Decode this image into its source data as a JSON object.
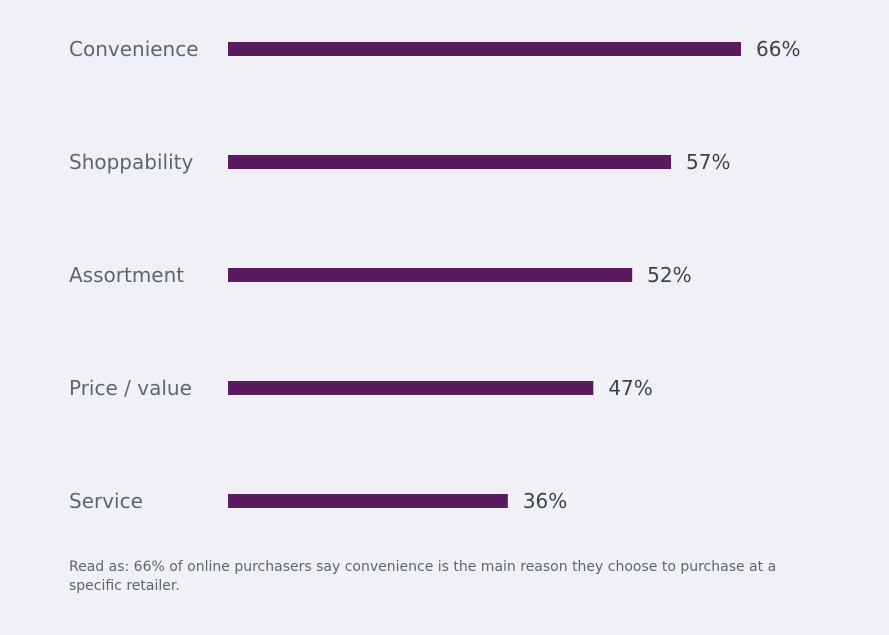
{
  "chart_data": {
    "type": "bar",
    "orientation": "horizontal",
    "categories": [
      "Convenience",
      "Shoppability",
      "Assortment",
      "Price / value",
      "Service"
    ],
    "values": [
      66,
      57,
      52,
      47,
      36
    ],
    "value_labels": [
      "66%",
      "57%",
      "52%",
      "47%",
      "36%"
    ],
    "unit": "%",
    "title": "",
    "xlabel": "",
    "ylabel": "",
    "grid": false,
    "bar_color": "#5a1a5e"
  },
  "footnote": "Read as: 66% of online purchasers say convenience is the main reason they choose to purchase at a specific retailer."
}
